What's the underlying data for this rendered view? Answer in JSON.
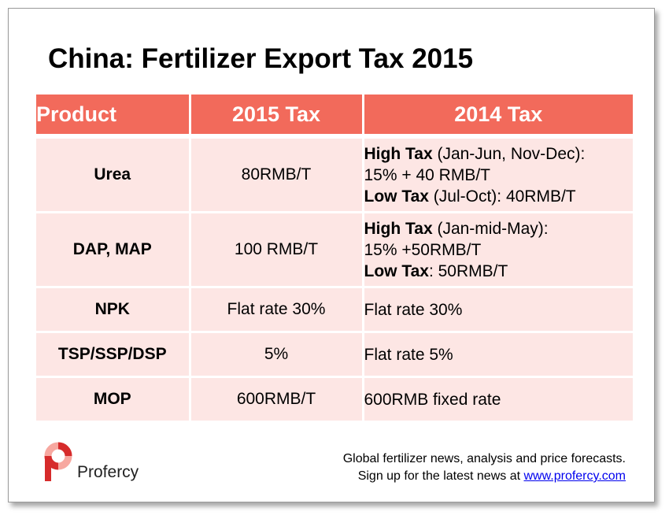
{
  "title": "China: Fertilizer Export Tax 2015",
  "table": {
    "headers": {
      "product": "Product",
      "tax2015": "2015 Tax",
      "tax2014": "2014 Tax"
    },
    "rows": [
      {
        "product": "Urea",
        "tax2015": "80RMB/T",
        "tax2014": {
          "line1_bold": "High Tax",
          "line1_rest": " (Jan-Jun, Nov-Dec):",
          "line2": "15% + 40 RMB/T",
          "line3_bold": "Low Tax",
          "line3_rest": " (Jul-Oct): 40RMB/T"
        }
      },
      {
        "product": "DAP, MAP",
        "tax2015": "100 RMB/T",
        "tax2014": {
          "line1_bold": "High Tax",
          "line1_rest": " (Jan-mid-May):",
          "line2": "15% +50RMB/T",
          "line3_bold": "Low Tax",
          "line3_rest": ": 50RMB/T"
        }
      },
      {
        "product": "NPK",
        "tax2015": "Flat rate 30%",
        "tax2014": "Flat rate 30%"
      },
      {
        "product": "TSP/SSP/DSP",
        "tax2015": "5%",
        "tax2014": "Flat rate 5%"
      },
      {
        "product": "MOP",
        "tax2015": "600RMB/T",
        "tax2014": "600RMB fixed rate"
      }
    ]
  },
  "footer": {
    "line1": "Global fertilizer news, analysis and price forecasts.",
    "line2_prefix": "Sign up for the latest news at ",
    "link_text": "www.profercy.com"
  },
  "logo": {
    "name": "Profercy",
    "icon": "profercy-logo-icon",
    "colors": {
      "red": "#d62b2b",
      "pink": "#f7a8a0",
      "dark": "#3a3a3a"
    }
  },
  "colors": {
    "header_bg": "#f26a5b",
    "cell_bg": "#fde6e4",
    "link": "#0000ee"
  }
}
